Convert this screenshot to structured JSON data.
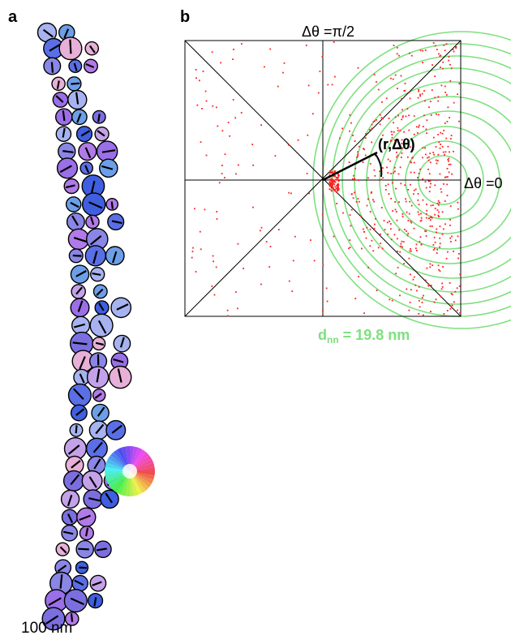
{
  "panel_a": {
    "label": "a",
    "scale_bar_text": "100 nm"
  },
  "panel_b": {
    "label": "b",
    "top_axis_label": "Δθ =π/2",
    "right_axis_label": "Δθ =0",
    "vector_label": "(r,Δθ)",
    "dnn_symbol": "d",
    "dnn_subscript": "nn",
    "dnn_value": " = 19.8 nm"
  },
  "colors": {
    "ring": "#7ee07e",
    "points": "#ff2020",
    "grid": "#000000",
    "disk_palette": [
      "#7b6fe0",
      "#9a6fe8",
      "#b07ae8",
      "#5a6fe6",
      "#3f5fe0",
      "#8a86e6",
      "#a7b3f0",
      "#6c9fe8",
      "#c4a2ea",
      "#e7b0d8"
    ]
  }
}
